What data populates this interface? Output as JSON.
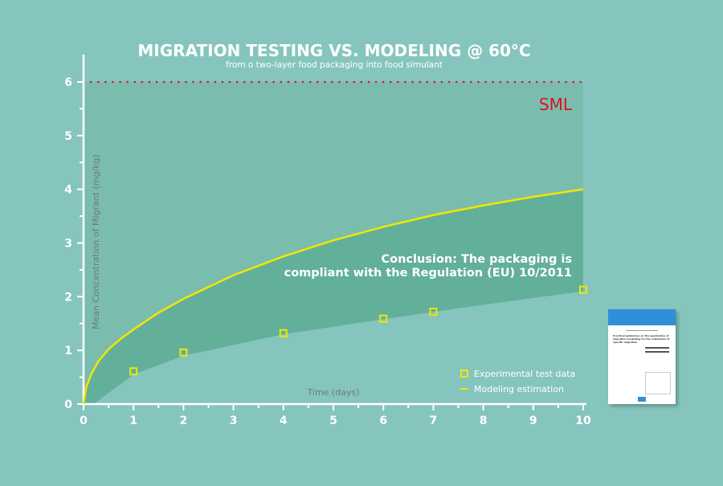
{
  "chart_data": {
    "type": "line",
    "title": "MIGRATION TESTING VS. MODELING @ 60°C",
    "subtitle": "from o two-layer food packaging into food simulant",
    "xlabel": "Time (days)",
    "ylabel": "Mean Concentration of Migrant (mg/kg)",
    "xlim": [
      0,
      10
    ],
    "ylim": [
      0,
      6
    ],
    "xticks": [
      "0",
      "1",
      "2",
      "3",
      "4",
      "5",
      "6",
      "7",
      "8",
      "9",
      "10"
    ],
    "yticks": [
      "0",
      "1",
      "2",
      "3",
      "4",
      "5",
      "6"
    ],
    "limit_line": {
      "label": "SML",
      "value": 6,
      "color": "#d8141e"
    },
    "series": [
      {
        "name": "Experimental test data",
        "type": "scatter",
        "color": "#f2e600",
        "x": [
          1,
          2,
          4,
          6,
          7,
          10
        ],
        "y": [
          0.61,
          0.96,
          1.32,
          1.59,
          1.72,
          2.13
        ]
      },
      {
        "name": "Modeling estimation",
        "type": "line",
        "color": "#f2e600",
        "x": [
          0,
          0.05,
          0.15,
          0.3,
          0.5,
          0.75,
          1,
          1.5,
          2,
          3,
          4,
          5,
          6,
          7,
          8,
          9,
          10
        ],
        "y": [
          0,
          0.3,
          0.55,
          0.8,
          1.02,
          1.22,
          1.39,
          1.7,
          1.96,
          2.4,
          2.75,
          3.05,
          3.3,
          3.52,
          3.7,
          3.86,
          4.0
        ]
      }
    ],
    "band_lower": {
      "x": [
        0.2,
        1,
        2,
        4,
        6,
        8,
        10
      ],
      "y": [
        0,
        0.55,
        0.9,
        1.3,
        1.58,
        1.85,
        2.1
      ]
    },
    "annotation": [
      "Conclusion: The packaging is",
      "compliant with the Regulation (EU) 10/2011"
    ],
    "legend_position": "bottom-right"
  },
  "thumbnail": {
    "heading": "Practical guidelines on the application of migration modelling for the estimation of specific migration"
  }
}
